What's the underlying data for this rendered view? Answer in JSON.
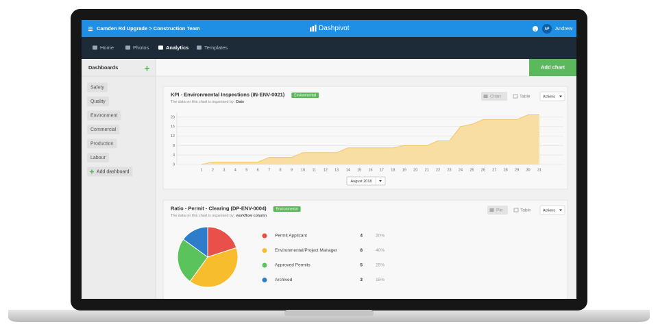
{
  "header": {
    "breadcrumb": "Camden Rd Upgrade > Construction Team",
    "brand": "Dashpivot",
    "avatar": "AP",
    "user": "Andrew"
  },
  "nav": [
    "Home",
    "Photos",
    "Analytics",
    "Templates"
  ],
  "sidebar": {
    "title": "Dashboards",
    "items": [
      "Safety",
      "Quality",
      "Environment",
      "Commercial",
      "Production",
      "Labour"
    ],
    "add": "Add dashboard"
  },
  "add_chart": "Add chart",
  "chart_data": [
    {
      "type": "area",
      "title": "KPI - Environmental Inspections (IN-ENV-0021)",
      "tag": "Environmental",
      "subtitle": "The data on this chart is organised by:",
      "organised_by": "Date",
      "views": [
        "Chart",
        "Table"
      ],
      "actions": "Actions",
      "period": "August 2018",
      "categories": [
        1,
        2,
        3,
        4,
        5,
        6,
        7,
        8,
        9,
        10,
        11,
        12,
        13,
        14,
        15,
        16,
        17,
        18,
        19,
        20,
        21,
        22,
        23,
        24,
        25,
        26,
        27,
        28,
        29,
        30,
        31
      ],
      "values": [
        0,
        1,
        1,
        1,
        1,
        1,
        3,
        3,
        3,
        5,
        5,
        5,
        5,
        7,
        7,
        7,
        7,
        7,
        8,
        8,
        8,
        10,
        10,
        16,
        17,
        19,
        19,
        19,
        19,
        21,
        21
      ],
      "color": "#f9dea3",
      "line_color": "#f2c56a",
      "ylim": [
        0,
        22
      ],
      "yticks": [
        0,
        4,
        8,
        12,
        16,
        20
      ],
      "grid": true
    },
    {
      "type": "pie",
      "title": "Ratio - Permit - Clearing (DP-ENV-0004)",
      "tag": "Environmental",
      "subtitle": "The data on this chart is organised by:",
      "organised_by": "workflow column",
      "views": [
        "Pie",
        "Table"
      ],
      "actions": "Actions",
      "categories": [
        "Permit Applicant",
        "Environmental/Project  Manager",
        "Approved Permits",
        "Archived"
      ],
      "values": [
        4,
        8,
        5,
        3
      ],
      "percent_labels": [
        "20%",
        "40%",
        "25%",
        "15%"
      ],
      "colors": [
        "#e8504a",
        "#f7bd2d",
        "#5bc35b",
        "#2d7dca"
      ]
    }
  ]
}
